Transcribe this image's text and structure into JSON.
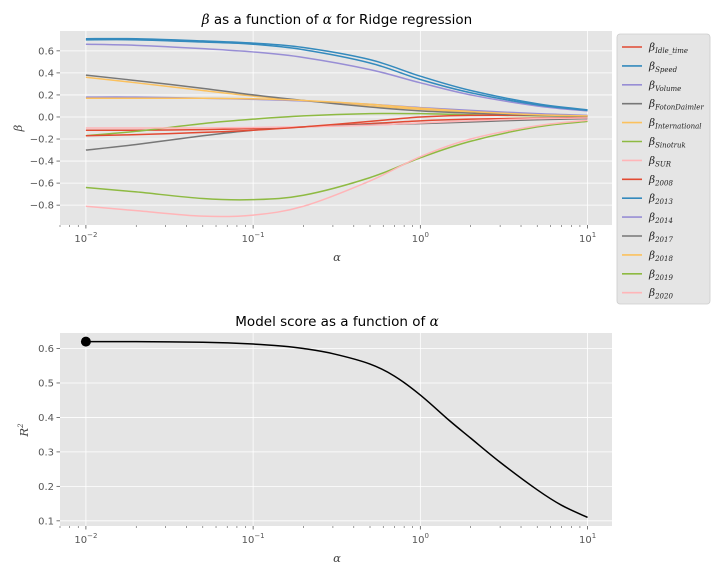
{
  "chart_data": [
    {
      "type": "line",
      "title_prefix": "β",
      "title_mid": " as a function of ",
      "title_var": "α",
      "title_suffix": " for Ridge regression",
      "xlabel": "α",
      "ylabel": "β",
      "xscale": "log",
      "xlim": [
        0.007,
        14
      ],
      "ylim": [
        -0.98,
        0.78
      ],
      "x_ticks": [
        0.01,
        0.1,
        1,
        10
      ],
      "x_tick_labels": [
        {
          "base": "10",
          "exp": "−2"
        },
        {
          "base": "10",
          "exp": "−1"
        },
        {
          "base": "10",
          "exp": "0"
        },
        {
          "base": "10",
          "exp": "1"
        }
      ],
      "y_ticks": [
        0.6,
        0.4,
        0.2,
        0.0,
        -0.2,
        -0.4,
        -0.6,
        -0.8
      ],
      "y_tick_labels": [
        "0.6",
        "0.4",
        "0.2",
        "0.0",
        "−0.2",
        "−0.4",
        "−0.6",
        "−0.8"
      ],
      "grid": true,
      "legend_position": "outside-right",
      "x": [
        0.01,
        0.02,
        0.05,
        0.1,
        0.2,
        0.5,
        1,
        2,
        5,
        10
      ],
      "series": [
        {
          "name_base": "β",
          "name_sub": "Idle_time",
          "color": "#E24A33",
          "values": [
            -0.12,
            -0.12,
            -0.115,
            -0.105,
            -0.09,
            -0.06,
            -0.035,
            -0.02,
            -0.01,
            -0.005
          ]
        },
        {
          "name_base": "β",
          "name_sub": "Speed",
          "color": "#348ABD",
          "values": [
            0.71,
            0.71,
            0.69,
            0.67,
            0.63,
            0.52,
            0.37,
            0.24,
            0.12,
            0.065
          ]
        },
        {
          "name_base": "β",
          "name_sub": "Volume",
          "color": "#988ED5",
          "values": [
            0.66,
            0.65,
            0.62,
            0.59,
            0.54,
            0.43,
            0.31,
            0.2,
            0.1,
            0.055
          ]
        },
        {
          "name_base": "β",
          "name_sub": "FotonDaimler",
          "color": "#777777",
          "values": [
            -0.3,
            -0.25,
            -0.17,
            -0.12,
            -0.09,
            -0.07,
            -0.06,
            -0.045,
            -0.025,
            -0.015
          ]
        },
        {
          "name_base": "β",
          "name_sub": "International",
          "color": "#FBC15E",
          "values": [
            0.36,
            0.31,
            0.24,
            0.19,
            0.15,
            0.1,
            0.07,
            0.045,
            0.02,
            0.01
          ]
        },
        {
          "name_base": "β",
          "name_sub": "Sinotruk",
          "color": "#8EBA42",
          "values": [
            -0.17,
            -0.13,
            -0.06,
            -0.02,
            0.01,
            0.03,
            0.03,
            0.02,
            0.01,
            0.005
          ]
        },
        {
          "name_base": "β",
          "name_sub": "SUR",
          "color": "#FFB5B8",
          "values": [
            -0.1,
            -0.1,
            -0.1,
            -0.095,
            -0.09,
            -0.075,
            -0.055,
            -0.035,
            -0.015,
            -0.008
          ]
        },
        {
          "name_base": "β",
          "name_sub": "2008",
          "color": "#E24A33",
          "values": [
            -0.17,
            -0.16,
            -0.14,
            -0.12,
            -0.09,
            -0.04,
            0.0,
            0.015,
            0.015,
            0.01
          ]
        },
        {
          "name_base": "β",
          "name_sub": "2013",
          "color": "#348ABD",
          "values": [
            0.7,
            0.7,
            0.68,
            0.66,
            0.61,
            0.49,
            0.34,
            0.22,
            0.11,
            0.06
          ]
        },
        {
          "name_base": "β",
          "name_sub": "2014",
          "color": "#988ED5",
          "values": [
            0.18,
            0.18,
            0.17,
            0.16,
            0.145,
            0.115,
            0.085,
            0.06,
            0.03,
            0.015
          ]
        },
        {
          "name_base": "β",
          "name_sub": "2017",
          "color": "#777777",
          "values": [
            0.38,
            0.33,
            0.26,
            0.2,
            0.15,
            0.09,
            0.055,
            0.035,
            0.015,
            0.005
          ]
        },
        {
          "name_base": "β",
          "name_sub": "2018",
          "color": "#FBC15E",
          "values": [
            0.17,
            0.17,
            0.17,
            0.165,
            0.15,
            0.115,
            0.08,
            0.05,
            0.02,
            0.01
          ]
        },
        {
          "name_base": "β",
          "name_sub": "2019",
          "color": "#8EBA42",
          "values": [
            -0.64,
            -0.68,
            -0.74,
            -0.75,
            -0.71,
            -0.55,
            -0.37,
            -0.22,
            -0.09,
            -0.04
          ]
        },
        {
          "name_base": "β",
          "name_sub": "2020",
          "color": "#FFB5B8",
          "values": [
            -0.81,
            -0.85,
            -0.9,
            -0.89,
            -0.81,
            -0.58,
            -0.36,
            -0.2,
            -0.08,
            -0.03
          ]
        }
      ]
    },
    {
      "type": "line",
      "title_prefix": "Model score as a function of ",
      "title_var": "α",
      "xlabel": "α",
      "ylabel_base": "R",
      "ylabel_exp": "2",
      "xscale": "log",
      "xlim": [
        0.007,
        14
      ],
      "ylim": [
        0.085,
        0.645
      ],
      "x_ticks": [
        0.01,
        0.1,
        1,
        10
      ],
      "x_tick_labels": [
        {
          "base": "10",
          "exp": "−2"
        },
        {
          "base": "10",
          "exp": "−1"
        },
        {
          "base": "10",
          "exp": "0"
        },
        {
          "base": "10",
          "exp": "1"
        }
      ],
      "y_ticks": [
        0.6,
        0.5,
        0.4,
        0.3,
        0.2,
        0.1
      ],
      "y_tick_labels": [
        "0.6",
        "0.5",
        "0.4",
        "0.3",
        "0.2",
        "0.1"
      ],
      "grid": true,
      "x": [
        0.01,
        0.02,
        0.05,
        0.1,
        0.15,
        0.2,
        0.3,
        0.5,
        0.7,
        1,
        1.5,
        2,
        3,
        5,
        7,
        10
      ],
      "series": [
        {
          "color": "#000000",
          "values": [
            0.62,
            0.62,
            0.618,
            0.613,
            0.607,
            0.6,
            0.585,
            0.555,
            0.52,
            0.465,
            0.39,
            0.34,
            0.27,
            0.19,
            0.145,
            0.11
          ]
        }
      ],
      "highlight_point": {
        "x": 0.01,
        "y": 0.62,
        "color": "#000000"
      }
    }
  ]
}
